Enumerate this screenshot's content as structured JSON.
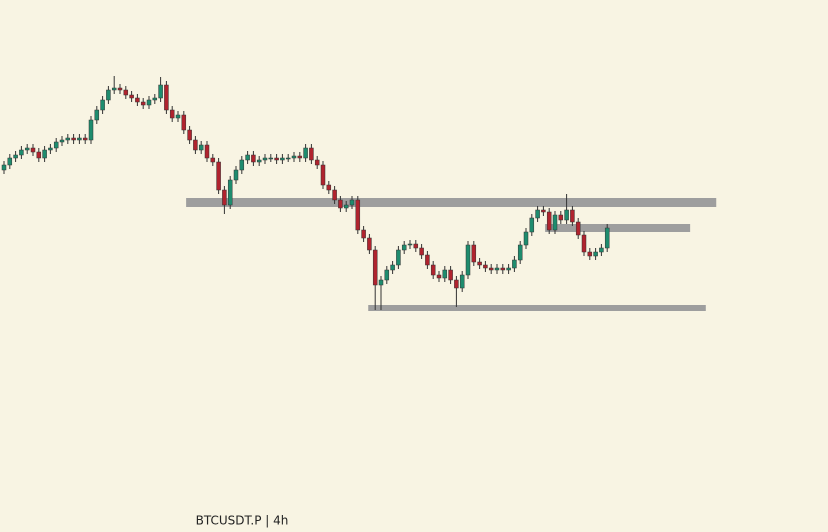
{
  "chart_data": {
    "type": "candlestick",
    "watermark": "BTCUSDT.P | 4h",
    "ylim": [
      0,
      532
    ],
    "up_color": "#1e8c6e",
    "down_color": "#b0232e",
    "zone_color": "#9e9e9e",
    "open": [
      362,
      367,
      374,
      377,
      382,
      384,
      380,
      374,
      382,
      384,
      390,
      392,
      394,
      392,
      394,
      392,
      412,
      422,
      432,
      442,
      444,
      442,
      437,
      434,
      430,
      427,
      432,
      434,
      447,
      422,
      414,
      417,
      402,
      392,
      382,
      387,
      374,
      370,
      342,
      327,
      352,
      362,
      372,
      377,
      370,
      372,
      374,
      374,
      372,
      374,
      374,
      376,
      374,
      384,
      372,
      367,
      347,
      342,
      332,
      324,
      327,
      332,
      302,
      294,
      282,
      247,
      252,
      262,
      267,
      282,
      287,
      288,
      284,
      277,
      267,
      257,
      254,
      262,
      252,
      244,
      257,
      287,
      270,
      267,
      264,
      262,
      264,
      262,
      264,
      272,
      287,
      300,
      314,
      322,
      320,
      302,
      317,
      312,
      322,
      310,
      297,
      280,
      276,
      280,
      284
    ],
    "high": [
      371,
      378,
      381,
      386,
      388,
      388,
      384,
      386,
      388,
      394,
      396,
      398,
      398,
      398,
      398,
      416,
      426,
      436,
      446,
      456,
      448,
      446,
      441,
      438,
      434,
      436,
      438,
      455,
      451,
      426,
      421,
      421,
      406,
      396,
      391,
      391,
      378,
      374,
      346,
      356,
      366,
      376,
      381,
      381,
      376,
      378,
      378,
      378,
      378,
      378,
      380,
      380,
      388,
      388,
      376,
      371,
      351,
      346,
      336,
      331,
      336,
      336,
      306,
      298,
      286,
      256,
      266,
      271,
      286,
      291,
      292,
      292,
      288,
      281,
      271,
      261,
      266,
      266,
      256,
      261,
      291,
      291,
      274,
      271,
      268,
      268,
      268,
      268,
      276,
      291,
      304,
      318,
      326,
      326,
      324,
      321,
      321,
      338,
      326,
      314,
      301,
      284,
      284,
      288,
      308
    ],
    "low": [
      358,
      363,
      370,
      373,
      378,
      376,
      370,
      370,
      378,
      380,
      386,
      388,
      388,
      388,
      388,
      388,
      408,
      418,
      428,
      438,
      438,
      433,
      430,
      426,
      423,
      423,
      428,
      430,
      418,
      410,
      410,
      398,
      388,
      378,
      378,
      370,
      366,
      338,
      318,
      323,
      348,
      358,
      368,
      366,
      366,
      368,
      370,
      368,
      368,
      370,
      370,
      370,
      370,
      368,
      363,
      343,
      338,
      328,
      320,
      320,
      323,
      298,
      290,
      278,
      222,
      222,
      248,
      258,
      263,
      278,
      283,
      280,
      273,
      263,
      253,
      250,
      250,
      248,
      225,
      240,
      253,
      266,
      263,
      260,
      258,
      258,
      258,
      258,
      260,
      268,
      283,
      296,
      310,
      316,
      298,
      298,
      308,
      308,
      306,
      293,
      276,
      272,
      272,
      276,
      280
    ],
    "close": [
      367,
      374,
      377,
      382,
      384,
      380,
      374,
      382,
      384,
      390,
      392,
      394,
      392,
      394,
      392,
      412,
      422,
      432,
      442,
      444,
      442,
      437,
      434,
      430,
      427,
      432,
      434,
      447,
      422,
      414,
      417,
      402,
      392,
      382,
      387,
      374,
      370,
      342,
      327,
      352,
      362,
      372,
      377,
      370,
      372,
      374,
      374,
      372,
      374,
      374,
      376,
      374,
      384,
      372,
      367,
      347,
      342,
      332,
      324,
      327,
      332,
      302,
      294,
      282,
      247,
      252,
      262,
      267,
      282,
      287,
      288,
      284,
      277,
      267,
      257,
      254,
      262,
      252,
      244,
      257,
      287,
      270,
      267,
      264,
      262,
      264,
      262,
      264,
      272,
      287,
      300,
      314,
      322,
      320,
      302,
      317,
      312,
      322,
      310,
      297,
      280,
      276,
      280,
      284,
      304
    ],
    "zones": [
      {
        "low": 325,
        "high": 334,
        "start": 31.4,
        "end": 122.8
      },
      {
        "low": 300,
        "high": 308,
        "start": 93.3,
        "end": 118.3
      },
      {
        "low": 221,
        "high": 227,
        "start": 62.8,
        "end": 121
      }
    ]
  }
}
